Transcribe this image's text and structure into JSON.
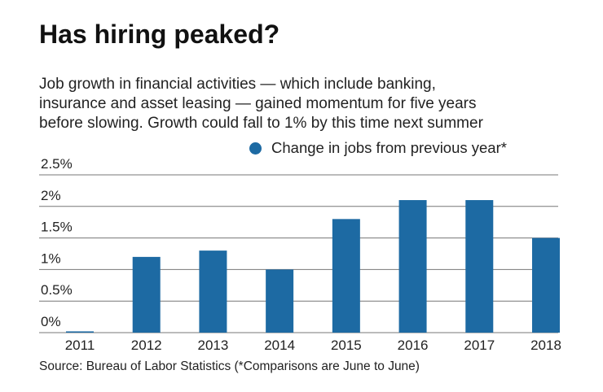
{
  "title": "Has hiring peaked?",
  "subtitle_lines": [
    "Job growth in financial activities — which include banking,",
    "insurance and asset leasing — gained momentum for five years",
    "before slowing. Growth could fall to 1% by this time next summer"
  ],
  "source": "Source: Bureau of Labor Statistics (*Comparisons are June to June)",
  "chart_data": {
    "type": "bar",
    "categories": [
      "2011",
      "2012",
      "2013",
      "2014",
      "2015",
      "2016",
      "2017",
      "2018"
    ],
    "series": [
      {
        "name": "Change in jobs from previous year*",
        "values": [
          0.02,
          1.2,
          1.3,
          1.0,
          1.8,
          2.1,
          2.1,
          1.5
        ]
      }
    ],
    "ylim": [
      0,
      2.5
    ],
    "yticks": [
      0,
      0.5,
      1,
      1.5,
      2,
      2.5
    ],
    "ytick_labels": [
      "0%",
      "0.5%",
      "1%",
      "1.5%",
      "2%",
      "2.5%"
    ],
    "grid": true,
    "legend": "top-right",
    "bar_color": "#1d6aa3"
  }
}
